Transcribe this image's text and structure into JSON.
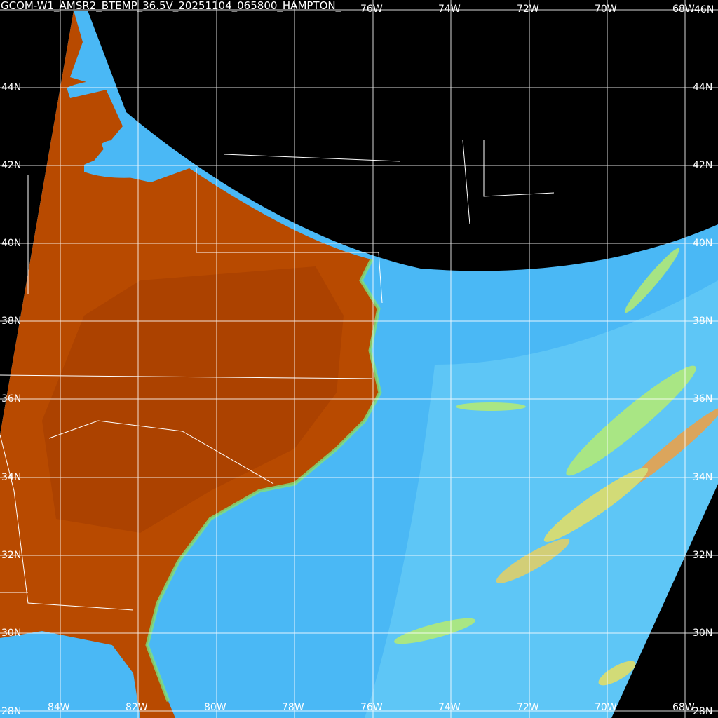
{
  "title": "GCOM-W1_AMSR2_BTEMP_36.5V_20251104_065800_HAMPTON_",
  "colors": {
    "background": "#000000",
    "land": "#b84a00",
    "land_hot": "#a03c00",
    "ocean": "#4ab8f5",
    "ocean_light": "#6fd4f7",
    "coast_green": "#7fe07a",
    "coast_yellow": "#f0e060",
    "grid": "#ffffff",
    "borders": "#ffffff"
  },
  "latitude_labels": [
    "44N",
    "42N",
    "40N",
    "38N",
    "36N",
    "34N",
    "32N",
    "30N",
    "28N"
  ],
  "longitude_labels": [
    "84W",
    "82W",
    "80W",
    "78W",
    "76W",
    "74W",
    "72W",
    "70W",
    "68W"
  ],
  "top_longitude_labels": [
    "76W",
    "74W",
    "72W",
    "70W",
    "68W"
  ],
  "right_top_label": "46N"
}
